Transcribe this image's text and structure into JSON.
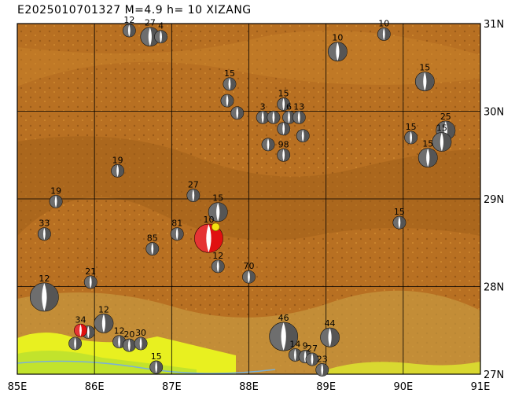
{
  "title": "E2025010701327 M=4.9  h= 10  XIZANG",
  "map": {
    "lon_range": [
      85,
      91
    ],
    "lat_range": [
      27,
      31
    ],
    "x_ticks": [
      "85E",
      "86E",
      "87E",
      "88E",
      "89E",
      "90E",
      "91E"
    ],
    "y_ticks": [
      "31N",
      "30N",
      "29N",
      "28N",
      "27N"
    ],
    "colors": {
      "terrain_high": "#a0601a",
      "terrain_mid": "#c8822a",
      "lowland": "#e8f020",
      "frame": "#000000",
      "highlight": "#e01010",
      "epicenter": "#f4e010"
    }
  },
  "mechanisms": [
    {
      "lon": 86.45,
      "lat": 30.92,
      "depth": "12",
      "size": "s"
    },
    {
      "lon": 86.72,
      "lat": 30.85,
      "depth": "27",
      "size": "m"
    },
    {
      "lon": 86.86,
      "lat": 30.85,
      "depth": "4",
      "size": "s"
    },
    {
      "lon": 89.15,
      "lat": 30.68,
      "depth": "10",
      "size": "m"
    },
    {
      "lon": 89.75,
      "lat": 30.88,
      "depth": "10",
      "size": "s"
    },
    {
      "lon": 90.28,
      "lat": 30.34,
      "depth": "15",
      "size": "m"
    },
    {
      "lon": 87.75,
      "lat": 30.31,
      "depth": "15",
      "size": "s"
    },
    {
      "lon": 87.72,
      "lat": 30.12,
      "depth": "",
      "size": "s"
    },
    {
      "lon": 87.85,
      "lat": 29.98,
      "depth": "",
      "size": "s"
    },
    {
      "lon": 88.45,
      "lat": 30.08,
      "depth": "15",
      "size": "s"
    },
    {
      "lon": 88.18,
      "lat": 29.93,
      "depth": "3",
      "size": "s"
    },
    {
      "lon": 88.32,
      "lat": 29.93,
      "depth": "",
      "size": "s"
    },
    {
      "lon": 88.52,
      "lat": 29.93,
      "depth": "6",
      "size": "s"
    },
    {
      "lon": 88.65,
      "lat": 29.93,
      "depth": "13",
      "size": "s"
    },
    {
      "lon": 88.45,
      "lat": 29.8,
      "depth": "",
      "size": "s"
    },
    {
      "lon": 88.7,
      "lat": 29.72,
      "depth": "",
      "size": "s"
    },
    {
      "lon": 88.25,
      "lat": 29.62,
      "depth": "",
      "size": "s"
    },
    {
      "lon": 88.45,
      "lat": 29.5,
      "depth": "98",
      "size": "s"
    },
    {
      "lon": 90.1,
      "lat": 29.7,
      "depth": "15",
      "size": "s"
    },
    {
      "lon": 90.55,
      "lat": 29.78,
      "depth": "25",
      "size": "m"
    },
    {
      "lon": 90.5,
      "lat": 29.65,
      "depth": "15",
      "size": "m"
    },
    {
      "lon": 90.32,
      "lat": 29.47,
      "depth": "15",
      "size": "m"
    },
    {
      "lon": 86.3,
      "lat": 29.32,
      "depth": "19",
      "size": "s"
    },
    {
      "lon": 85.5,
      "lat": 28.97,
      "depth": "19",
      "size": "s"
    },
    {
      "lon": 87.28,
      "lat": 29.04,
      "depth": "27",
      "size": "s"
    },
    {
      "lon": 87.6,
      "lat": 28.85,
      "depth": "15",
      "size": "m"
    },
    {
      "lon": 85.35,
      "lat": 28.6,
      "depth": "33",
      "size": "s"
    },
    {
      "lon": 87.07,
      "lat": 28.6,
      "depth": "81",
      "size": "s"
    },
    {
      "lon": 86.75,
      "lat": 28.43,
      "depth": "85",
      "size": "s"
    },
    {
      "lon": 89.95,
      "lat": 28.73,
      "depth": "15",
      "size": "s"
    },
    {
      "lon": 87.6,
      "lat": 28.23,
      "depth": "12",
      "size": "s"
    },
    {
      "lon": 88.0,
      "lat": 28.11,
      "depth": "70",
      "size": "s"
    },
    {
      "lon": 85.95,
      "lat": 28.05,
      "depth": "21",
      "size": "s"
    },
    {
      "lon": 85.35,
      "lat": 27.88,
      "depth": "12",
      "size": "l"
    },
    {
      "lon": 86.12,
      "lat": 27.58,
      "depth": "12",
      "size": "m"
    },
    {
      "lon": 85.92,
      "lat": 27.48,
      "depth": "",
      "size": "s"
    },
    {
      "lon": 85.75,
      "lat": 27.35,
      "depth": "",
      "size": "s"
    },
    {
      "lon": 86.32,
      "lat": 27.37,
      "depth": "12",
      "size": "s"
    },
    {
      "lon": 86.45,
      "lat": 27.33,
      "depth": "20",
      "size": "s"
    },
    {
      "lon": 86.6,
      "lat": 27.35,
      "depth": "30",
      "size": "s"
    },
    {
      "lon": 86.8,
      "lat": 27.08,
      "depth": "15",
      "size": "s"
    },
    {
      "lon": 88.45,
      "lat": 27.43,
      "depth": "46",
      "size": "l"
    },
    {
      "lon": 89.05,
      "lat": 27.42,
      "depth": "44",
      "size": "m"
    },
    {
      "lon": 88.6,
      "lat": 27.22,
      "depth": "14",
      "size": "s"
    },
    {
      "lon": 88.73,
      "lat": 27.2,
      "depth": "9",
      "size": "s"
    },
    {
      "lon": 88.82,
      "lat": 27.17,
      "depth": "27",
      "size": "s"
    },
    {
      "lon": 88.95,
      "lat": 27.05,
      "depth": "23",
      "size": "s"
    }
  ],
  "highlighted": [
    {
      "lon": 87.48,
      "lat": 28.55,
      "depth": "10",
      "size": "l"
    },
    {
      "lon": 85.82,
      "lat": 27.5,
      "depth": "34",
      "size": "s"
    }
  ],
  "epicenter": {
    "lon": 87.57,
    "lat": 28.68
  }
}
